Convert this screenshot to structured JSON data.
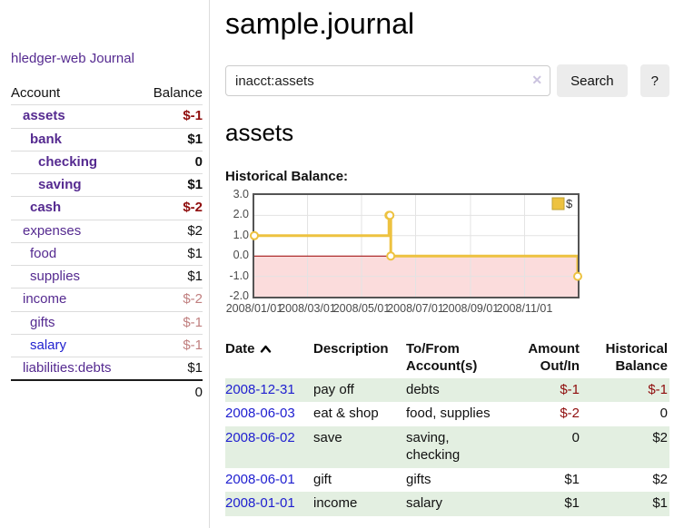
{
  "app": {
    "title": "hledger-web",
    "nav_journal": "Journal"
  },
  "sidebar": {
    "accounts_header": {
      "account": "Account",
      "balance": "Balance"
    },
    "accounts": [
      {
        "name": "assets",
        "balance": "$-1"
      },
      {
        "name": "bank",
        "balance": "$1"
      },
      {
        "name": "checking",
        "balance": "0"
      },
      {
        "name": "saving",
        "balance": "$1"
      },
      {
        "name": "cash",
        "balance": "$-2"
      },
      {
        "name": "expenses",
        "balance": "$2"
      },
      {
        "name": "food",
        "balance": "$1"
      },
      {
        "name": "supplies",
        "balance": "$1"
      },
      {
        "name": "income",
        "balance": "$-2"
      },
      {
        "name": "gifts",
        "balance": "$-1"
      },
      {
        "name": "salary",
        "balance": "$-1"
      },
      {
        "name": "liabilities:debts",
        "balance": "$1"
      }
    ],
    "total": "0"
  },
  "page": {
    "title": "sample.journal",
    "account_heading": "assets",
    "chart_label": "Historical Balance:"
  },
  "search": {
    "value": "inacct:assets",
    "clear_glyph": "✕",
    "button_label": "Search",
    "help_label": "?"
  },
  "chart_data": {
    "type": "line",
    "title": "Historical Balance",
    "steps": true,
    "grid": true,
    "legend_position": "top-right",
    "series": [
      {
        "name": "$",
        "color": "#EDC240",
        "points": [
          [
            "2008/01/01",
            1
          ],
          [
            "2008/06/01",
            2
          ],
          [
            "2008/06/02",
            2
          ],
          [
            "2008/06/03",
            0
          ],
          [
            "2008/12/31",
            -1
          ]
        ]
      }
    ],
    "x_range": [
      "2008/01/01",
      "2008/12/31"
    ],
    "ylim": [
      -2,
      3
    ],
    "yticks": [
      3.0,
      2.0,
      1.0,
      0.0,
      -1.0,
      -2.0
    ],
    "ytick_labels": [
      "3.0",
      "2.0",
      "1.0",
      "0.0",
      "-1.0",
      "-2.0"
    ],
    "xticks": [
      "2008/01/01",
      "2008/03/01",
      "2008/05/01",
      "2008/07/01",
      "2008/09/01",
      "2008/11/01"
    ],
    "negative_fill": "#fbdcdc",
    "zero_line_color": "#990000",
    "border_color": "#545454",
    "gridline_color": "#e3e3e3"
  },
  "journal_table": {
    "headers": {
      "date": "Date",
      "description": "Description",
      "tofrom_line1": "To/From",
      "tofrom_line2": "Account(s)",
      "amount_line1": "Amount",
      "amount_line2": "Out/In",
      "hist_line1": "Historical",
      "hist_line2": "Balance"
    },
    "rows": [
      {
        "date": "2008-12-31",
        "description": "pay off",
        "accounts": "debts",
        "amount": "$-1",
        "balance": "$-1"
      },
      {
        "date": "2008-06-03",
        "description": "eat & shop",
        "accounts": "food, supplies",
        "amount": "$-2",
        "balance": "0"
      },
      {
        "date": "2008-06-02",
        "description": "save",
        "accounts": "saving, checking",
        "amount": "0",
        "balance": "$2"
      },
      {
        "date": "2008-06-01",
        "description": "gift",
        "accounts": "gifts",
        "amount": "$1",
        "balance": "$2"
      },
      {
        "date": "2008-01-01",
        "description": "income",
        "accounts": "salary",
        "amount": "$1",
        "balance": "$1"
      }
    ]
  }
}
